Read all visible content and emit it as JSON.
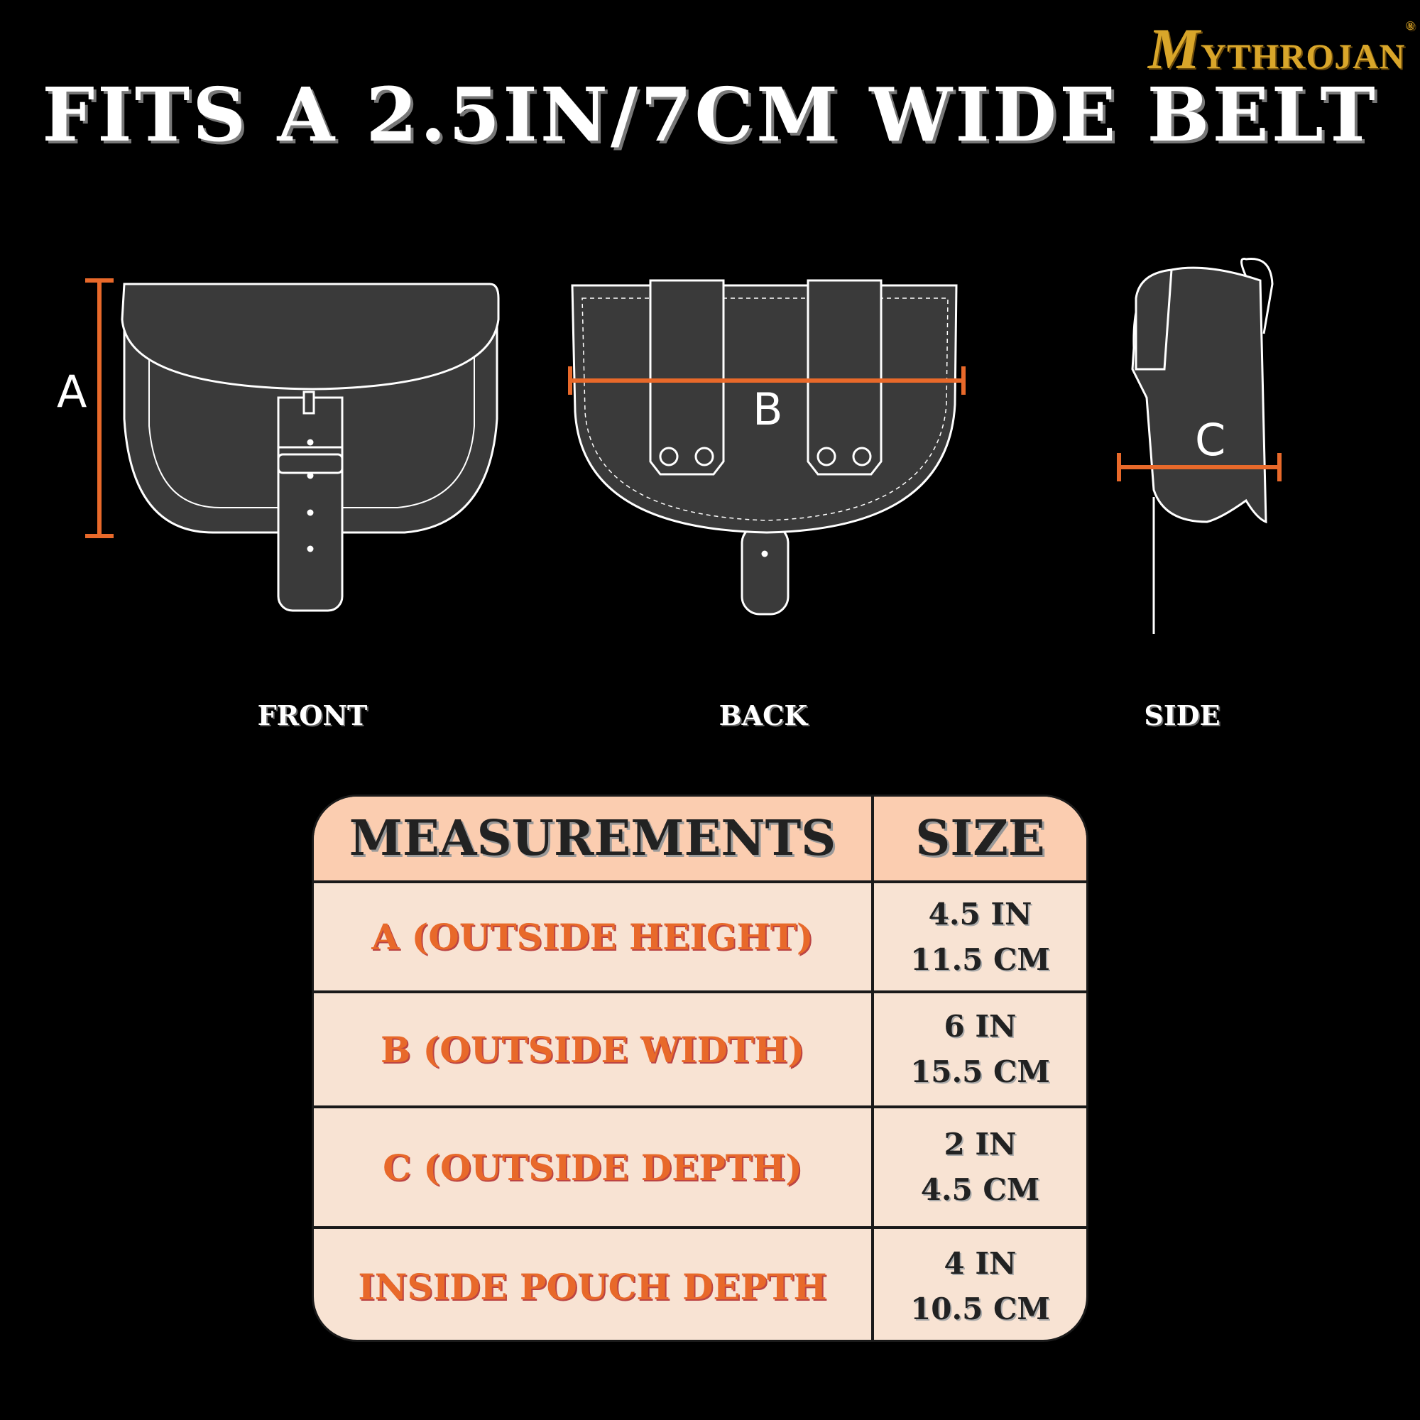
{
  "brand": {
    "logo_text": "MYTHROJAN",
    "registered": "®",
    "color": "#d9a62a"
  },
  "title": "FITS A 2.5IN/7CM WIDE BELT",
  "views": [
    {
      "label": "FRONT",
      "dimension": "A"
    },
    {
      "label": "BACK",
      "dimension": "B"
    },
    {
      "label": "SIDE",
      "dimension": "C"
    }
  ],
  "colors": {
    "accent": "#e8692a",
    "header_bg": "#fbcdb0",
    "row_bg": "#f8e3d3",
    "pouch": "#3a3a3a"
  },
  "table": {
    "headers": [
      "MEASUREMENTS",
      "SIZE"
    ],
    "rows": [
      {
        "measurement": "A (OUTSIDE HEIGHT)",
        "inches": "4.5 IN",
        "cm": "11.5 CM"
      },
      {
        "measurement": "B (OUTSIDE WIDTH)",
        "inches": "6 IN",
        "cm": "15.5 CM"
      },
      {
        "measurement": "C (OUTSIDE DEPTH)",
        "inches": "2 IN",
        "cm": "4.5 CM"
      },
      {
        "measurement": "INSIDE POUCH DEPTH",
        "inches": "4 IN",
        "cm": "10.5 CM"
      }
    ]
  }
}
